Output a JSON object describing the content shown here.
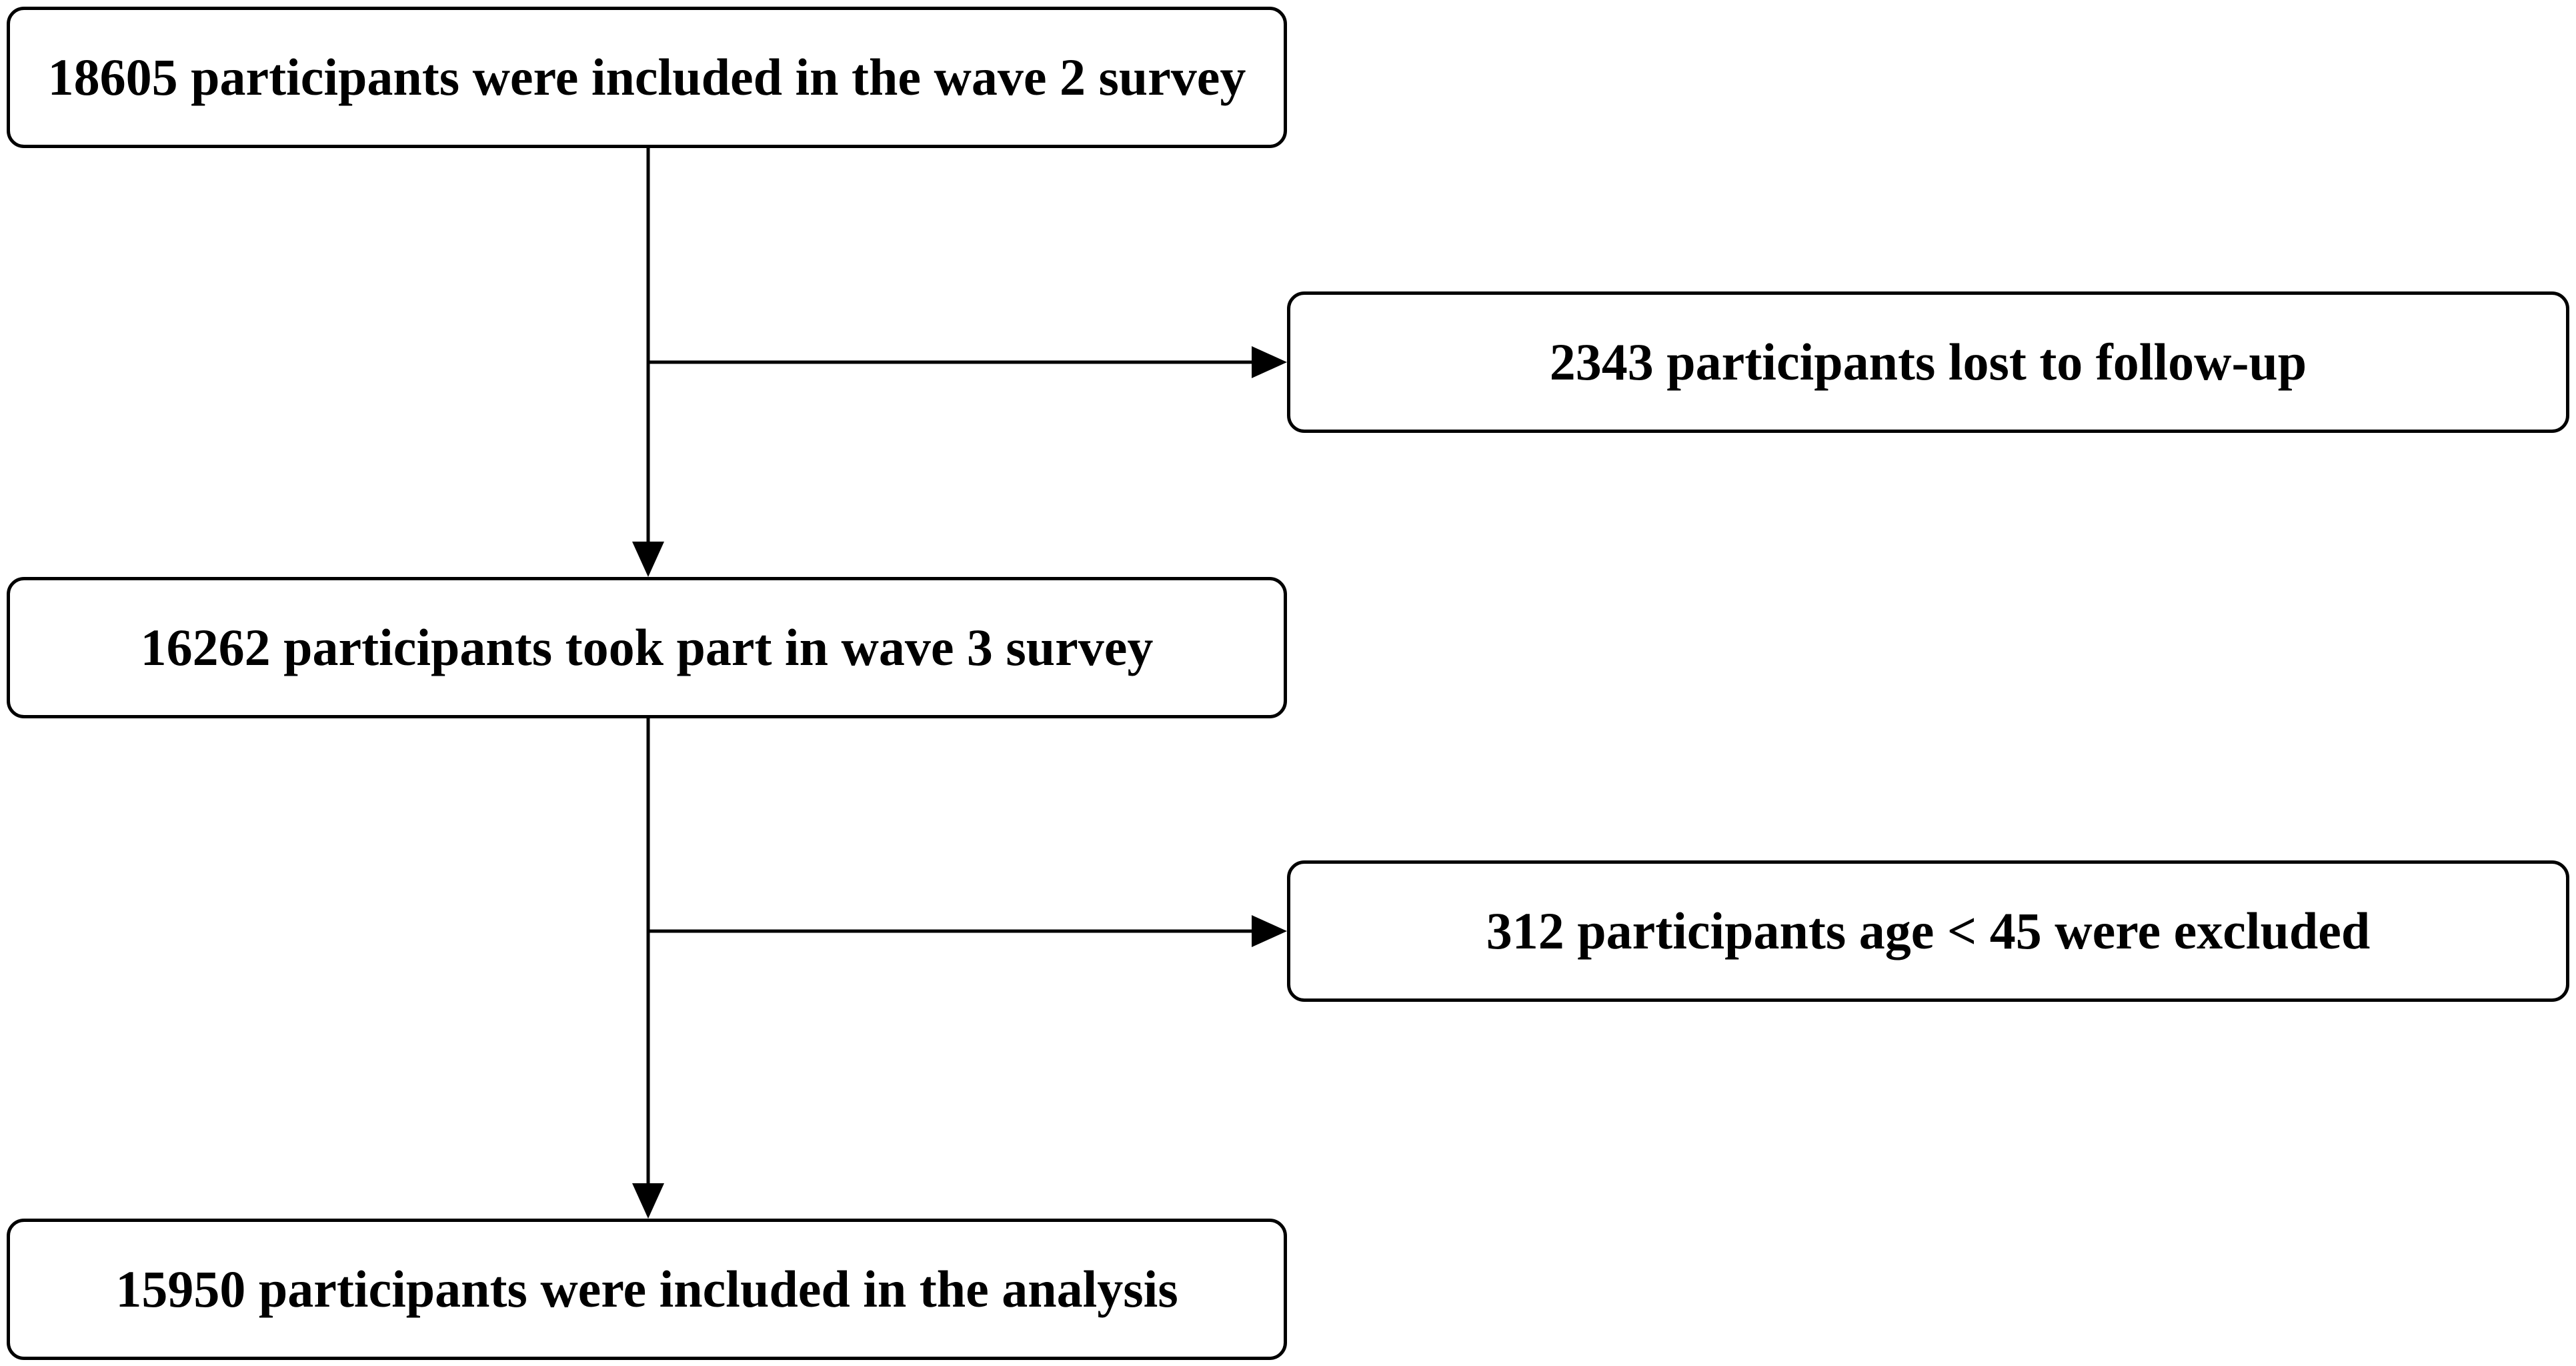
{
  "flowchart": {
    "boxes": {
      "wave2": "18605 participants were included in the wave 2 survey",
      "lost": "2343 participants lost to follow-up",
      "wave3": "16262 participants took part in wave 3 survey",
      "excluded": "312 participants age < 45 were excluded",
      "analysis": "15950 participants were included in the analysis"
    }
  },
  "colors": {
    "stroke": "#000000",
    "background": "#ffffff"
  }
}
